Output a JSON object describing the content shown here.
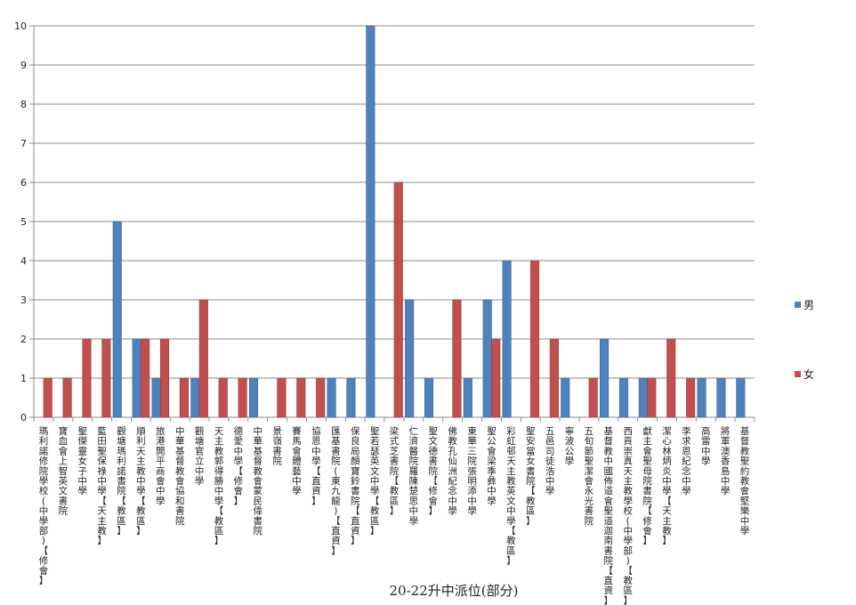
{
  "chart_data": {
    "type": "bar",
    "title": "",
    "xlabel": "20-22升中派位(部分)",
    "ylabel": "",
    "ylim": [
      0,
      10
    ],
    "yticks": [
      0,
      1,
      2,
      3,
      4,
      5,
      6,
      7,
      8,
      9,
      10
    ],
    "grid": true,
    "legend_position": "right",
    "categories": [
      "瑪利諾修院學校(中學部)【修會】",
      "寶血會上智英文書院",
      "聖傑靈女子中學",
      "藍田聖保祿中學【天主教】",
      "觀塘瑪利諾書院【教區】",
      "順利天主教中學【教區】",
      "旅港開平商會中學",
      "中華基督教會協和書院",
      "觀塘官立中學",
      "天主教郭得勝中學【教區】",
      "德愛中學【修會】",
      "中華基督教會蒙民偉書院",
      "景嶺書院",
      "賽馬會體藝中學",
      "協恩中學【直資】",
      "匯基書院(東九龍)【直資】",
      "保良局顏寶鈴書院【直資】",
      "聖若瑟英文中學【教區】",
      "梁式芝書院【教區】",
      "仁濟醫院羅陳楚思中學",
      "聖文德書院【修會】",
      "佛教孔仙洲紀念中學",
      "東華三院張明添中學",
      "聖公會梁季彝中學",
      "彩虹邨天主教英文中學【教區】",
      "聖安當女書院【教區】",
      "五邑司徒浩中學",
      "寧波公學",
      "五旬節聖潔會永光書院",
      "基督教中國佈道會聖道迦南書院【直資】",
      "西貢崇真天主教學校(中學部)【教區】",
      "獻主會聖母院書院【修會】",
      "潔心林炳炎中學【天主教】",
      "李求恩紀念中學",
      "高雷中學",
      "將軍澳香島中學",
      "基督教聖約教會堅樂中學"
    ],
    "series": [
      {
        "name": "男",
        "color": "#4f81bd",
        "values": [
          0,
          0,
          0,
          0,
          5,
          2,
          1,
          0,
          1,
          0,
          0,
          1,
          0,
          0,
          0,
          1,
          1,
          10,
          0,
          3,
          1,
          0,
          1,
          3,
          4,
          0,
          0,
          1,
          0,
          2,
          1,
          1,
          0,
          0,
          1,
          1,
          1
        ]
      },
      {
        "name": "女",
        "color": "#c0504d",
        "values": [
          1,
          1,
          2,
          2,
          0,
          2,
          2,
          1,
          3,
          1,
          1,
          0,
          1,
          1,
          1,
          0,
          0,
          0,
          6,
          0,
          0,
          3,
          0,
          2,
          0,
          4,
          2,
          0,
          1,
          0,
          0,
          1,
          2,
          1,
          0,
          0,
          0
        ]
      }
    ]
  }
}
